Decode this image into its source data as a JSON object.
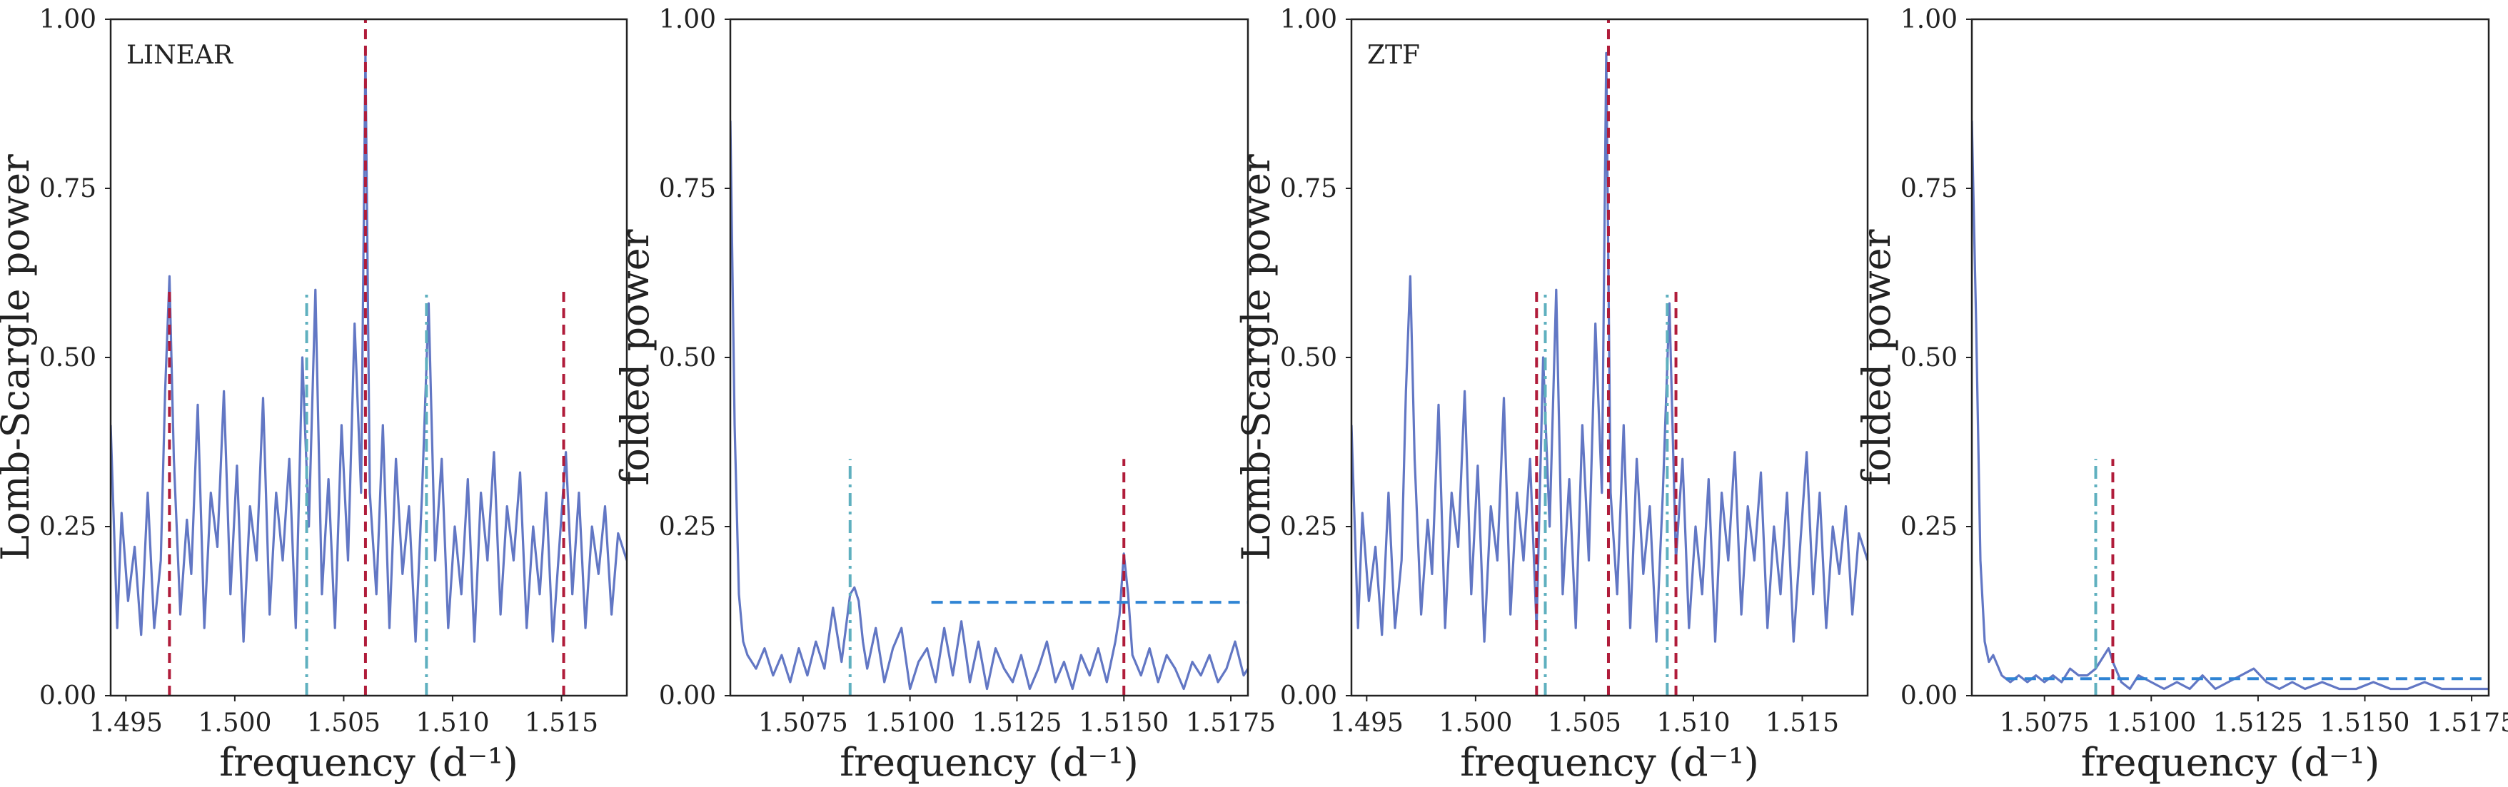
{
  "figure": {
    "colors": {
      "curve": "#6277c4",
      "red": "#b01c3a",
      "teal": "#5fb0bf",
      "blue": "#2f84d4",
      "axis": "#222222"
    }
  },
  "chart_data": [
    {
      "type": "line",
      "panel_label": "LINEAR",
      "xlabel": "frequency (d⁻¹)",
      "ylabel": "Lomb-Scargle power",
      "xlim": [
        1.4943,
        1.518
      ],
      "ylim": [
        0,
        1
      ],
      "xticks": [
        1.495,
        1.5,
        1.505,
        1.51,
        1.515
      ],
      "xtick_labels": [
        "1.495",
        "1.500",
        "1.505",
        "1.510",
        "1.515"
      ],
      "yticks": [
        0,
        0.25,
        0.5,
        0.75,
        1.0
      ],
      "ytick_labels": [
        "0.00",
        "0.25",
        "0.50",
        "0.75",
        "1.00"
      ],
      "grid": false,
      "series": [
        {
          "x": [
            1.4943,
            1.4946,
            1.4948,
            1.4951,
            1.4954,
            1.4957,
            1.496,
            1.4963,
            1.4966,
            1.4968,
            1.497,
            1.4972,
            1.4975,
            1.4978,
            1.498,
            1.4983,
            1.4986,
            1.4989,
            1.4992,
            1.4995,
            1.4998,
            1.5001,
            1.5004,
            1.5007,
            1.501,
            1.5013,
            1.5016,
            1.5019,
            1.5022,
            1.5025,
            1.5028,
            1.5031,
            1.5034,
            1.5037,
            1.504,
            1.5043,
            1.5046,
            1.5049,
            1.5052,
            1.5055,
            1.5058,
            1.506,
            1.5062,
            1.5065,
            1.5068,
            1.5071,
            1.5074,
            1.5077,
            1.508,
            1.5083,
            1.5086,
            1.5089,
            1.5092,
            1.5095,
            1.5098,
            1.5101,
            1.5104,
            1.5107,
            1.511,
            1.5113,
            1.5116,
            1.5119,
            1.5122,
            1.5125,
            1.5128,
            1.5131,
            1.5134,
            1.5137,
            1.514,
            1.5143,
            1.5146,
            1.5149,
            1.5152,
            1.5155,
            1.5158,
            1.5161,
            1.5164,
            1.5167,
            1.517,
            1.5173,
            1.5176,
            1.518
          ],
          "y": [
            0.4,
            0.1,
            0.27,
            0.14,
            0.22,
            0.09,
            0.3,
            0.1,
            0.2,
            0.45,
            0.62,
            0.35,
            0.12,
            0.26,
            0.18,
            0.43,
            0.1,
            0.3,
            0.22,
            0.45,
            0.15,
            0.34,
            0.08,
            0.28,
            0.2,
            0.44,
            0.12,
            0.3,
            0.2,
            0.35,
            0.1,
            0.5,
            0.25,
            0.6,
            0.15,
            0.32,
            0.1,
            0.4,
            0.2,
            0.55,
            0.3,
            0.95,
            0.3,
            0.15,
            0.4,
            0.1,
            0.35,
            0.18,
            0.28,
            0.08,
            0.3,
            0.58,
            0.2,
            0.35,
            0.1,
            0.25,
            0.15,
            0.32,
            0.08,
            0.3,
            0.2,
            0.36,
            0.12,
            0.28,
            0.2,
            0.33,
            0.1,
            0.25,
            0.15,
            0.3,
            0.08,
            0.22,
            0.36,
            0.15,
            0.3,
            0.1,
            0.25,
            0.18,
            0.28,
            0.12,
            0.24,
            0.2
          ]
        }
      ],
      "vlines": [
        {
          "x": 1.497,
          "ymax": 0.6,
          "style": "red-dashed"
        },
        {
          "x": 1.506,
          "ymax": 1.0,
          "style": "red-dashed"
        },
        {
          "x": 1.5151,
          "ymax": 0.6,
          "style": "red-dashed"
        },
        {
          "x": 1.5033,
          "ymax": 0.6,
          "style": "teal-dashdot"
        },
        {
          "x": 1.5088,
          "ymax": 0.6,
          "style": "teal-dashdot"
        }
      ],
      "hlines": []
    },
    {
      "type": "line",
      "panel_label": "",
      "xlabel": "frequency (d⁻¹)",
      "ylabel": "folded power",
      "xlim": [
        1.5058,
        1.5179
      ],
      "ylim": [
        0,
        1
      ],
      "xticks": [
        1.5075,
        1.51,
        1.5125,
        1.515,
        1.5175
      ],
      "xtick_labels": [
        "1.5075",
        "1.5100",
        "1.5125",
        "1.5150",
        "1.5175"
      ],
      "yticks": [
        0,
        0.25,
        0.5,
        0.75,
        1.0
      ],
      "ytick_labels": [
        "0.00",
        "0.25",
        "0.50",
        "0.75",
        "1.00"
      ],
      "grid": false,
      "series": [
        {
          "x": [
            1.5058,
            1.5059,
            1.506,
            1.5061,
            1.5062,
            1.5064,
            1.5066,
            1.5068,
            1.507,
            1.5072,
            1.5074,
            1.5076,
            1.5078,
            1.508,
            1.5082,
            1.5084,
            1.5085,
            1.5086,
            1.5087,
            1.5088,
            1.5089,
            1.509,
            1.5092,
            1.5094,
            1.5096,
            1.5098,
            1.51,
            1.5102,
            1.5104,
            1.5106,
            1.5108,
            1.511,
            1.5112,
            1.5114,
            1.5116,
            1.5118,
            1.512,
            1.5122,
            1.5124,
            1.5126,
            1.5128,
            1.513,
            1.5132,
            1.5134,
            1.5136,
            1.5138,
            1.514,
            1.5142,
            1.5144,
            1.5146,
            1.5148,
            1.5149,
            1.515,
            1.5151,
            1.5152,
            1.5154,
            1.5156,
            1.5158,
            1.516,
            1.5162,
            1.5164,
            1.5166,
            1.5168,
            1.517,
            1.5172,
            1.5174,
            1.5176,
            1.5178,
            1.5179
          ],
          "y": [
            0.85,
            0.4,
            0.15,
            0.08,
            0.06,
            0.04,
            0.07,
            0.03,
            0.06,
            0.02,
            0.07,
            0.03,
            0.08,
            0.04,
            0.13,
            0.05,
            0.1,
            0.15,
            0.16,
            0.14,
            0.08,
            0.04,
            0.1,
            0.02,
            0.07,
            0.1,
            0.01,
            0.05,
            0.07,
            0.02,
            0.1,
            0.03,
            0.11,
            0.02,
            0.08,
            0.01,
            0.07,
            0.04,
            0.02,
            0.06,
            0.01,
            0.04,
            0.08,
            0.02,
            0.05,
            0.01,
            0.06,
            0.03,
            0.07,
            0.02,
            0.08,
            0.12,
            0.21,
            0.15,
            0.06,
            0.03,
            0.07,
            0.02,
            0.06,
            0.04,
            0.01,
            0.05,
            0.03,
            0.06,
            0.02,
            0.04,
            0.08,
            0.03,
            0.04
          ]
        }
      ],
      "vlines": [
        {
          "x": 1.515,
          "ymax": 0.35,
          "style": "red-dashed"
        },
        {
          "x": 1.5086,
          "ymax": 0.35,
          "style": "teal-dashdot"
        }
      ],
      "hlines": [
        {
          "y": 0.138,
          "xmin": 1.5105,
          "xmax": 1.5179,
          "style": "blue-dashed"
        }
      ]
    },
    {
      "type": "line",
      "panel_label": "ZTF",
      "xlabel": "frequency (d⁻¹)",
      "ylabel": "Lomb-Scargle power",
      "xlim": [
        1.4943,
        1.518
      ],
      "ylim": [
        0,
        1
      ],
      "xticks": [
        1.495,
        1.5,
        1.505,
        1.51,
        1.515
      ],
      "xtick_labels": [
        "1.495",
        "1.500",
        "1.505",
        "1.510",
        "1.515"
      ],
      "yticks": [
        0,
        0.25,
        0.5,
        0.75,
        1.0
      ],
      "ytick_labels": [
        "0.00",
        "0.25",
        "0.50",
        "0.75",
        "1.00"
      ],
      "grid": false,
      "series": [
        {
          "x": [
            1.4943,
            1.4946,
            1.4948,
            1.4951,
            1.4954,
            1.4957,
            1.496,
            1.4963,
            1.4966,
            1.4968,
            1.497,
            1.4972,
            1.4975,
            1.4978,
            1.498,
            1.4983,
            1.4986,
            1.4989,
            1.4992,
            1.4995,
            1.4998,
            1.5001,
            1.5004,
            1.5007,
            1.501,
            1.5013,
            1.5016,
            1.5019,
            1.5022,
            1.5025,
            1.5028,
            1.5031,
            1.5034,
            1.5037,
            1.504,
            1.5043,
            1.5046,
            1.5049,
            1.5052,
            1.5055,
            1.5058,
            1.506,
            1.5062,
            1.5065,
            1.5068,
            1.5071,
            1.5074,
            1.5077,
            1.508,
            1.5083,
            1.5086,
            1.5089,
            1.5092,
            1.5095,
            1.5098,
            1.5101,
            1.5104,
            1.5107,
            1.511,
            1.5113,
            1.5116,
            1.5119,
            1.5122,
            1.5125,
            1.5128,
            1.5131,
            1.5134,
            1.5137,
            1.514,
            1.5143,
            1.5146,
            1.5149,
            1.5152,
            1.5155,
            1.5158,
            1.5161,
            1.5164,
            1.5167,
            1.517,
            1.5173,
            1.5176,
            1.518
          ],
          "y": [
            0.4,
            0.1,
            0.27,
            0.14,
            0.22,
            0.09,
            0.3,
            0.1,
            0.2,
            0.45,
            0.62,
            0.35,
            0.12,
            0.26,
            0.18,
            0.43,
            0.1,
            0.3,
            0.22,
            0.45,
            0.15,
            0.34,
            0.08,
            0.28,
            0.2,
            0.44,
            0.12,
            0.3,
            0.2,
            0.35,
            0.1,
            0.5,
            0.25,
            0.6,
            0.15,
            0.32,
            0.1,
            0.4,
            0.2,
            0.55,
            0.3,
            0.95,
            0.3,
            0.15,
            0.4,
            0.1,
            0.35,
            0.18,
            0.28,
            0.08,
            0.3,
            0.58,
            0.2,
            0.35,
            0.1,
            0.25,
            0.15,
            0.32,
            0.08,
            0.3,
            0.2,
            0.36,
            0.12,
            0.28,
            0.2,
            0.33,
            0.1,
            0.25,
            0.15,
            0.3,
            0.08,
            0.22,
            0.36,
            0.15,
            0.3,
            0.1,
            0.25,
            0.18,
            0.28,
            0.12,
            0.24,
            0.2
          ]
        }
      ],
      "vlines": [
        {
          "x": 1.5028,
          "ymax": 0.6,
          "style": "red-dashed"
        },
        {
          "x": 1.5061,
          "ymax": 1.0,
          "style": "red-dashed"
        },
        {
          "x": 1.5092,
          "ymax": 0.6,
          "style": "red-dashed"
        },
        {
          "x": 1.5032,
          "ymax": 0.6,
          "style": "teal-dashdot"
        },
        {
          "x": 1.5088,
          "ymax": 0.6,
          "style": "teal-dashdot"
        }
      ],
      "hlines": []
    },
    {
      "type": "line",
      "panel_label": "",
      "xlabel": "frequency (d⁻¹)",
      "ylabel": "folded power",
      "xlim": [
        1.5058,
        1.5179
      ],
      "ylim": [
        0,
        1
      ],
      "xticks": [
        1.5075,
        1.51,
        1.5125,
        1.515,
        1.5175
      ],
      "xtick_labels": [
        "1.5075",
        "1.5100",
        "1.5125",
        "1.5150",
        "1.5175"
      ],
      "yticks": [
        0,
        0.25,
        0.5,
        0.75,
        1.0
      ],
      "ytick_labels": [
        "0.00",
        "0.25",
        "0.50",
        "0.75",
        "1.00"
      ],
      "grid": false,
      "series": [
        {
          "x": [
            1.5058,
            1.5059,
            1.506,
            1.5061,
            1.5062,
            1.5063,
            1.5065,
            1.5067,
            1.5069,
            1.5071,
            1.5073,
            1.5075,
            1.5077,
            1.5079,
            1.5081,
            1.5083,
            1.5085,
            1.5087,
            1.5089,
            1.509,
            1.5091,
            1.5093,
            1.5095,
            1.5097,
            1.51,
            1.5103,
            1.5106,
            1.5109,
            1.5112,
            1.5115,
            1.5118,
            1.5121,
            1.5124,
            1.5127,
            1.513,
            1.5133,
            1.5136,
            1.514,
            1.5144,
            1.5148,
            1.5152,
            1.5156,
            1.516,
            1.5164,
            1.5168,
            1.5172,
            1.5176,
            1.5179
          ],
          "y": [
            0.85,
            0.55,
            0.2,
            0.08,
            0.05,
            0.06,
            0.03,
            0.02,
            0.03,
            0.02,
            0.03,
            0.02,
            0.03,
            0.02,
            0.04,
            0.03,
            0.03,
            0.04,
            0.06,
            0.07,
            0.05,
            0.02,
            0.01,
            0.03,
            0.02,
            0.01,
            0.02,
            0.01,
            0.03,
            0.01,
            0.02,
            0.03,
            0.04,
            0.02,
            0.01,
            0.02,
            0.01,
            0.02,
            0.01,
            0.01,
            0.02,
            0.01,
            0.01,
            0.02,
            0.01,
            0.01,
            0.01,
            0.01
          ]
        }
      ],
      "vlines": [
        {
          "x": 1.5091,
          "ymax": 0.35,
          "style": "red-dashed"
        },
        {
          "x": 1.5087,
          "ymax": 0.35,
          "style": "teal-dashdot"
        }
      ],
      "hlines": [
        {
          "y": 0.025,
          "xmin": 1.5066,
          "xmax": 1.5179,
          "style": "blue-dashed"
        }
      ]
    }
  ]
}
